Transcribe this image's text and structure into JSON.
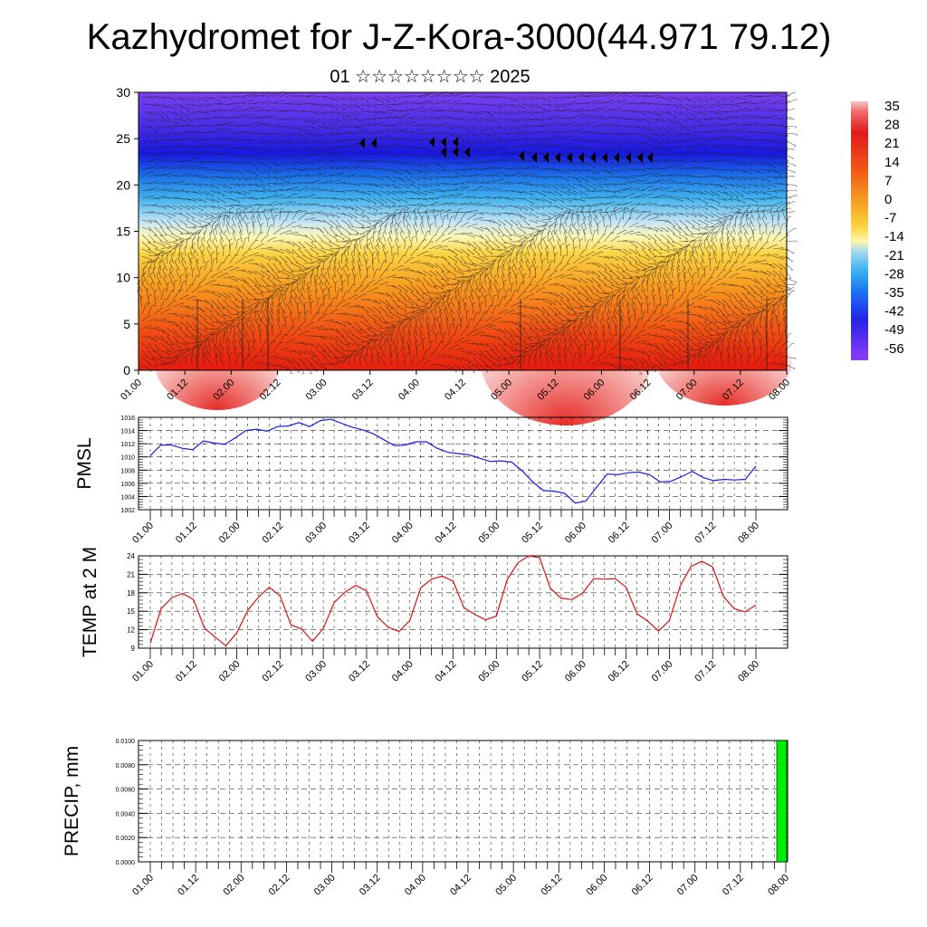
{
  "header": {
    "title": "Kazhydromet for J-Z-Kora-3000(44.971 79.12)",
    "subtitle": "01 ☆☆☆☆☆☆☆☆ 2025"
  },
  "time_labels": [
    "01.00",
    "01.12",
    "02.00",
    "02.12",
    "03.00",
    "03.12",
    "04.00",
    "04.12",
    "05.00",
    "05.12",
    "06.00",
    "06.12",
    "07.00",
    "07.12",
    "08.00"
  ],
  "chart_data": [
    {
      "type": "heatmap",
      "name": "temperature-height-section",
      "x_labels_ref": "time_labels",
      "ylim": [
        0,
        30
      ],
      "y_ticks": [
        0,
        5,
        10,
        15,
        20,
        25,
        30
      ],
      "colorbar": {
        "labels": [
          "35",
          "28",
          "21",
          "14",
          "7",
          "0",
          "-7",
          "-14",
          "-21",
          "-28",
          "-35",
          "-42",
          "-49",
          "-56"
        ],
        "range": [
          -60,
          38
        ]
      },
      "overlay": "wind barbs"
    },
    {
      "type": "line",
      "ylabel": "PMSL",
      "ylim": [
        1002,
        1016
      ],
      "y_ticks": [
        1002,
        1004,
        1006,
        1008,
        1010,
        1012,
        1014,
        1016
      ],
      "color": "#0000ff",
      "values": [
        1010.2,
        1011.8,
        1011.8,
        1011.3,
        1011.1,
        1012.4,
        1012.1,
        1011.9,
        1012.9,
        1014.0,
        1014.2,
        1013.9,
        1014.6,
        1014.7,
        1015.2,
        1014.6,
        1015.5,
        1015.7,
        1015.1,
        1014.5,
        1014.1,
        1013.5,
        1012.6,
        1011.7,
        1011.8,
        1012.3,
        1012.3,
        1011.3,
        1010.7,
        1010.5,
        1010.3,
        1009.8,
        1009.3,
        1009.4,
        1009.2,
        1007.9,
        1006.2,
        1004.9,
        1004.8,
        1004.5,
        1003.0,
        1003.3,
        1005.4,
        1007.4,
        1007.3,
        1007.6,
        1007.7,
        1007.3,
        1006.2,
        1006.3,
        1007.0,
        1007.8,
        1006.9,
        1006.4,
        1006.6,
        1006.5,
        1006.6,
        1008.6
      ]
    },
    {
      "type": "line",
      "ylabel": "TEMP at 2 M",
      "ylim": [
        9,
        24
      ],
      "y_ticks": [
        9,
        12,
        15,
        18,
        21,
        24
      ],
      "color": "#dd0000",
      "values": [
        9.8,
        15.4,
        17.2,
        17.9,
        16.9,
        12.3,
        10.8,
        9.4,
        11.5,
        15.1,
        17.3,
        18.9,
        17.5,
        12.8,
        12.1,
        10.1,
        12.2,
        16.4,
        18.1,
        19.2,
        18.3,
        14.1,
        12.4,
        11.7,
        13.5,
        18.8,
        20.2,
        20.7,
        19.9,
        15.6,
        14.5,
        13.6,
        14.2,
        20.1,
        22.9,
        24.0,
        23.7,
        18.7,
        17.1,
        16.9,
        18.0,
        20.3,
        20.2,
        20.3,
        18.9,
        14.6,
        13.4,
        11.8,
        13.5,
        19.1,
        22.3,
        23.1,
        22.2,
        17.4,
        15.4,
        14.9,
        16.0
      ]
    },
    {
      "type": "bar",
      "ylabel": "PRECIP, mm",
      "ylim": [
        0,
        0.01
      ],
      "y_ticks": [
        "0.0000",
        "0.0020",
        "0.0040",
        "0.0060",
        "0.0080",
        "0.0100"
      ],
      "color": "#00ff00",
      "bar_at_label": "08.00",
      "value": 0.01
    }
  ]
}
